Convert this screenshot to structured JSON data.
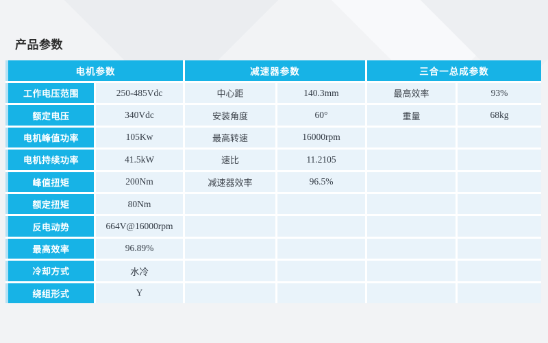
{
  "page": {
    "title": "产品参数"
  },
  "colors": {
    "accent_cyan": "#17b3e6",
    "accent_light_blue": "#b5e1f4",
    "cell_tint": "#e9f3fa",
    "cell_gap": "#ffffff",
    "page_background": "#f2f3f5",
    "label_text_light": "#ffffff",
    "value_text_dark": "#333b45"
  },
  "table": {
    "groups": [
      {
        "header": "电机参数",
        "rows": [
          {
            "label": "工作电压范围",
            "value": "250-485Vdc"
          },
          {
            "label": "额定电压",
            "value": "340Vdc"
          },
          {
            "label": "电机峰值功率",
            "value": "105Kw"
          },
          {
            "label": "电机持续功率",
            "value": "41.5kW"
          },
          {
            "label": "峰值扭矩",
            "value": "200Nm"
          },
          {
            "label": "额定扭矩",
            "value": "80Nm"
          },
          {
            "label": "反电动势",
            "value": "664V@16000rpm"
          },
          {
            "label": "最高效率",
            "value": "96.89%"
          },
          {
            "label": "冷却方式",
            "value": "水冷"
          },
          {
            "label": "绕组形式",
            "value": "Y"
          }
        ]
      },
      {
        "header": "减速器参数",
        "rows": [
          {
            "label": "中心距",
            "value": "140.3mm"
          },
          {
            "label": "安装角度",
            "value": "60°"
          },
          {
            "label": "最高转速",
            "value": "16000rpm"
          },
          {
            "label": "速比",
            "value": "11.2105"
          },
          {
            "label": "减速器效率",
            "value": "96.5%"
          },
          {
            "label": "",
            "value": ""
          },
          {
            "label": "",
            "value": ""
          },
          {
            "label": "",
            "value": ""
          },
          {
            "label": "",
            "value": ""
          },
          {
            "label": "",
            "value": ""
          }
        ]
      },
      {
        "header": "三合一总成参数",
        "rows": [
          {
            "label": "最高效率",
            "value": "93%"
          },
          {
            "label": "重量",
            "value": "68kg"
          },
          {
            "label": "",
            "value": ""
          },
          {
            "label": "",
            "value": ""
          },
          {
            "label": "",
            "value": ""
          },
          {
            "label": "",
            "value": ""
          },
          {
            "label": "",
            "value": ""
          },
          {
            "label": "",
            "value": ""
          },
          {
            "label": "",
            "value": ""
          },
          {
            "label": "",
            "value": ""
          }
        ]
      }
    ]
  }
}
